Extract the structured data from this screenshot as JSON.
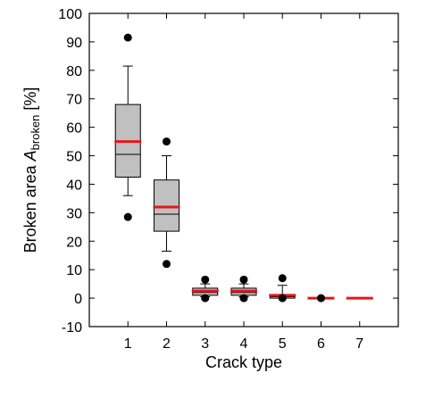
{
  "chart_data": {
    "type": "box",
    "xlabel": "Crack type",
    "ylabel_main": "Broken area ",
    "ylabel_var": "A",
    "ylabel_sub": "broken",
    "ylabel_unit": " [%]",
    "ylim": [
      -10,
      100
    ],
    "yticks": [
      -10,
      0,
      10,
      20,
      30,
      40,
      50,
      60,
      70,
      80,
      90,
      100
    ],
    "ytick_labels": [
      "-10",
      "0",
      "10",
      "20",
      "30",
      "40",
      "50",
      "60",
      "70",
      "80",
      "90",
      "100"
    ],
    "categories": [
      "1",
      "2",
      "3",
      "4",
      "5",
      "6",
      "7"
    ],
    "grid": false,
    "colors": {
      "box_fill": "#c0c0c0",
      "mean_line": "#e8141c",
      "outline": "#000000"
    },
    "boxes": [
      {
        "category": "1",
        "whisker_low": 36,
        "q1": 42.5,
        "median": 50.5,
        "mean": 55,
        "q3": 68,
        "whisker_high": 81.5,
        "outliers": [
          91.5,
          28.5
        ]
      },
      {
        "category": "2",
        "whisker_low": 16.5,
        "q1": 23.5,
        "median": 29.5,
        "mean": 32,
        "q3": 41.5,
        "whisker_high": 50,
        "outliers": [
          55,
          12
        ]
      },
      {
        "category": "3",
        "whisker_low": 0.5,
        "q1": 1,
        "median": 2,
        "mean": 2.5,
        "q3": 3.5,
        "whisker_high": 5,
        "outliers": [
          6.5,
          0
        ]
      },
      {
        "category": "4",
        "whisker_low": 0.5,
        "q1": 1,
        "median": 2,
        "mean": 2.5,
        "q3": 3.5,
        "whisker_high": 5,
        "outliers": [
          6.5,
          0
        ]
      },
      {
        "category": "5",
        "whisker_low": 0,
        "q1": 0,
        "median": 0.5,
        "mean": 1,
        "q3": 1,
        "whisker_high": 4.5,
        "outliers": [
          7,
          0
        ]
      },
      {
        "category": "6",
        "whisker_low": 0,
        "q1": 0,
        "median": 0,
        "mean": 0,
        "q3": 0,
        "whisker_high": 0,
        "outliers": [
          0
        ]
      },
      {
        "category": "7",
        "whisker_low": 0,
        "q1": 0,
        "median": 0,
        "mean": 0,
        "q3": 0,
        "whisker_high": 0,
        "outliers": []
      }
    ]
  }
}
